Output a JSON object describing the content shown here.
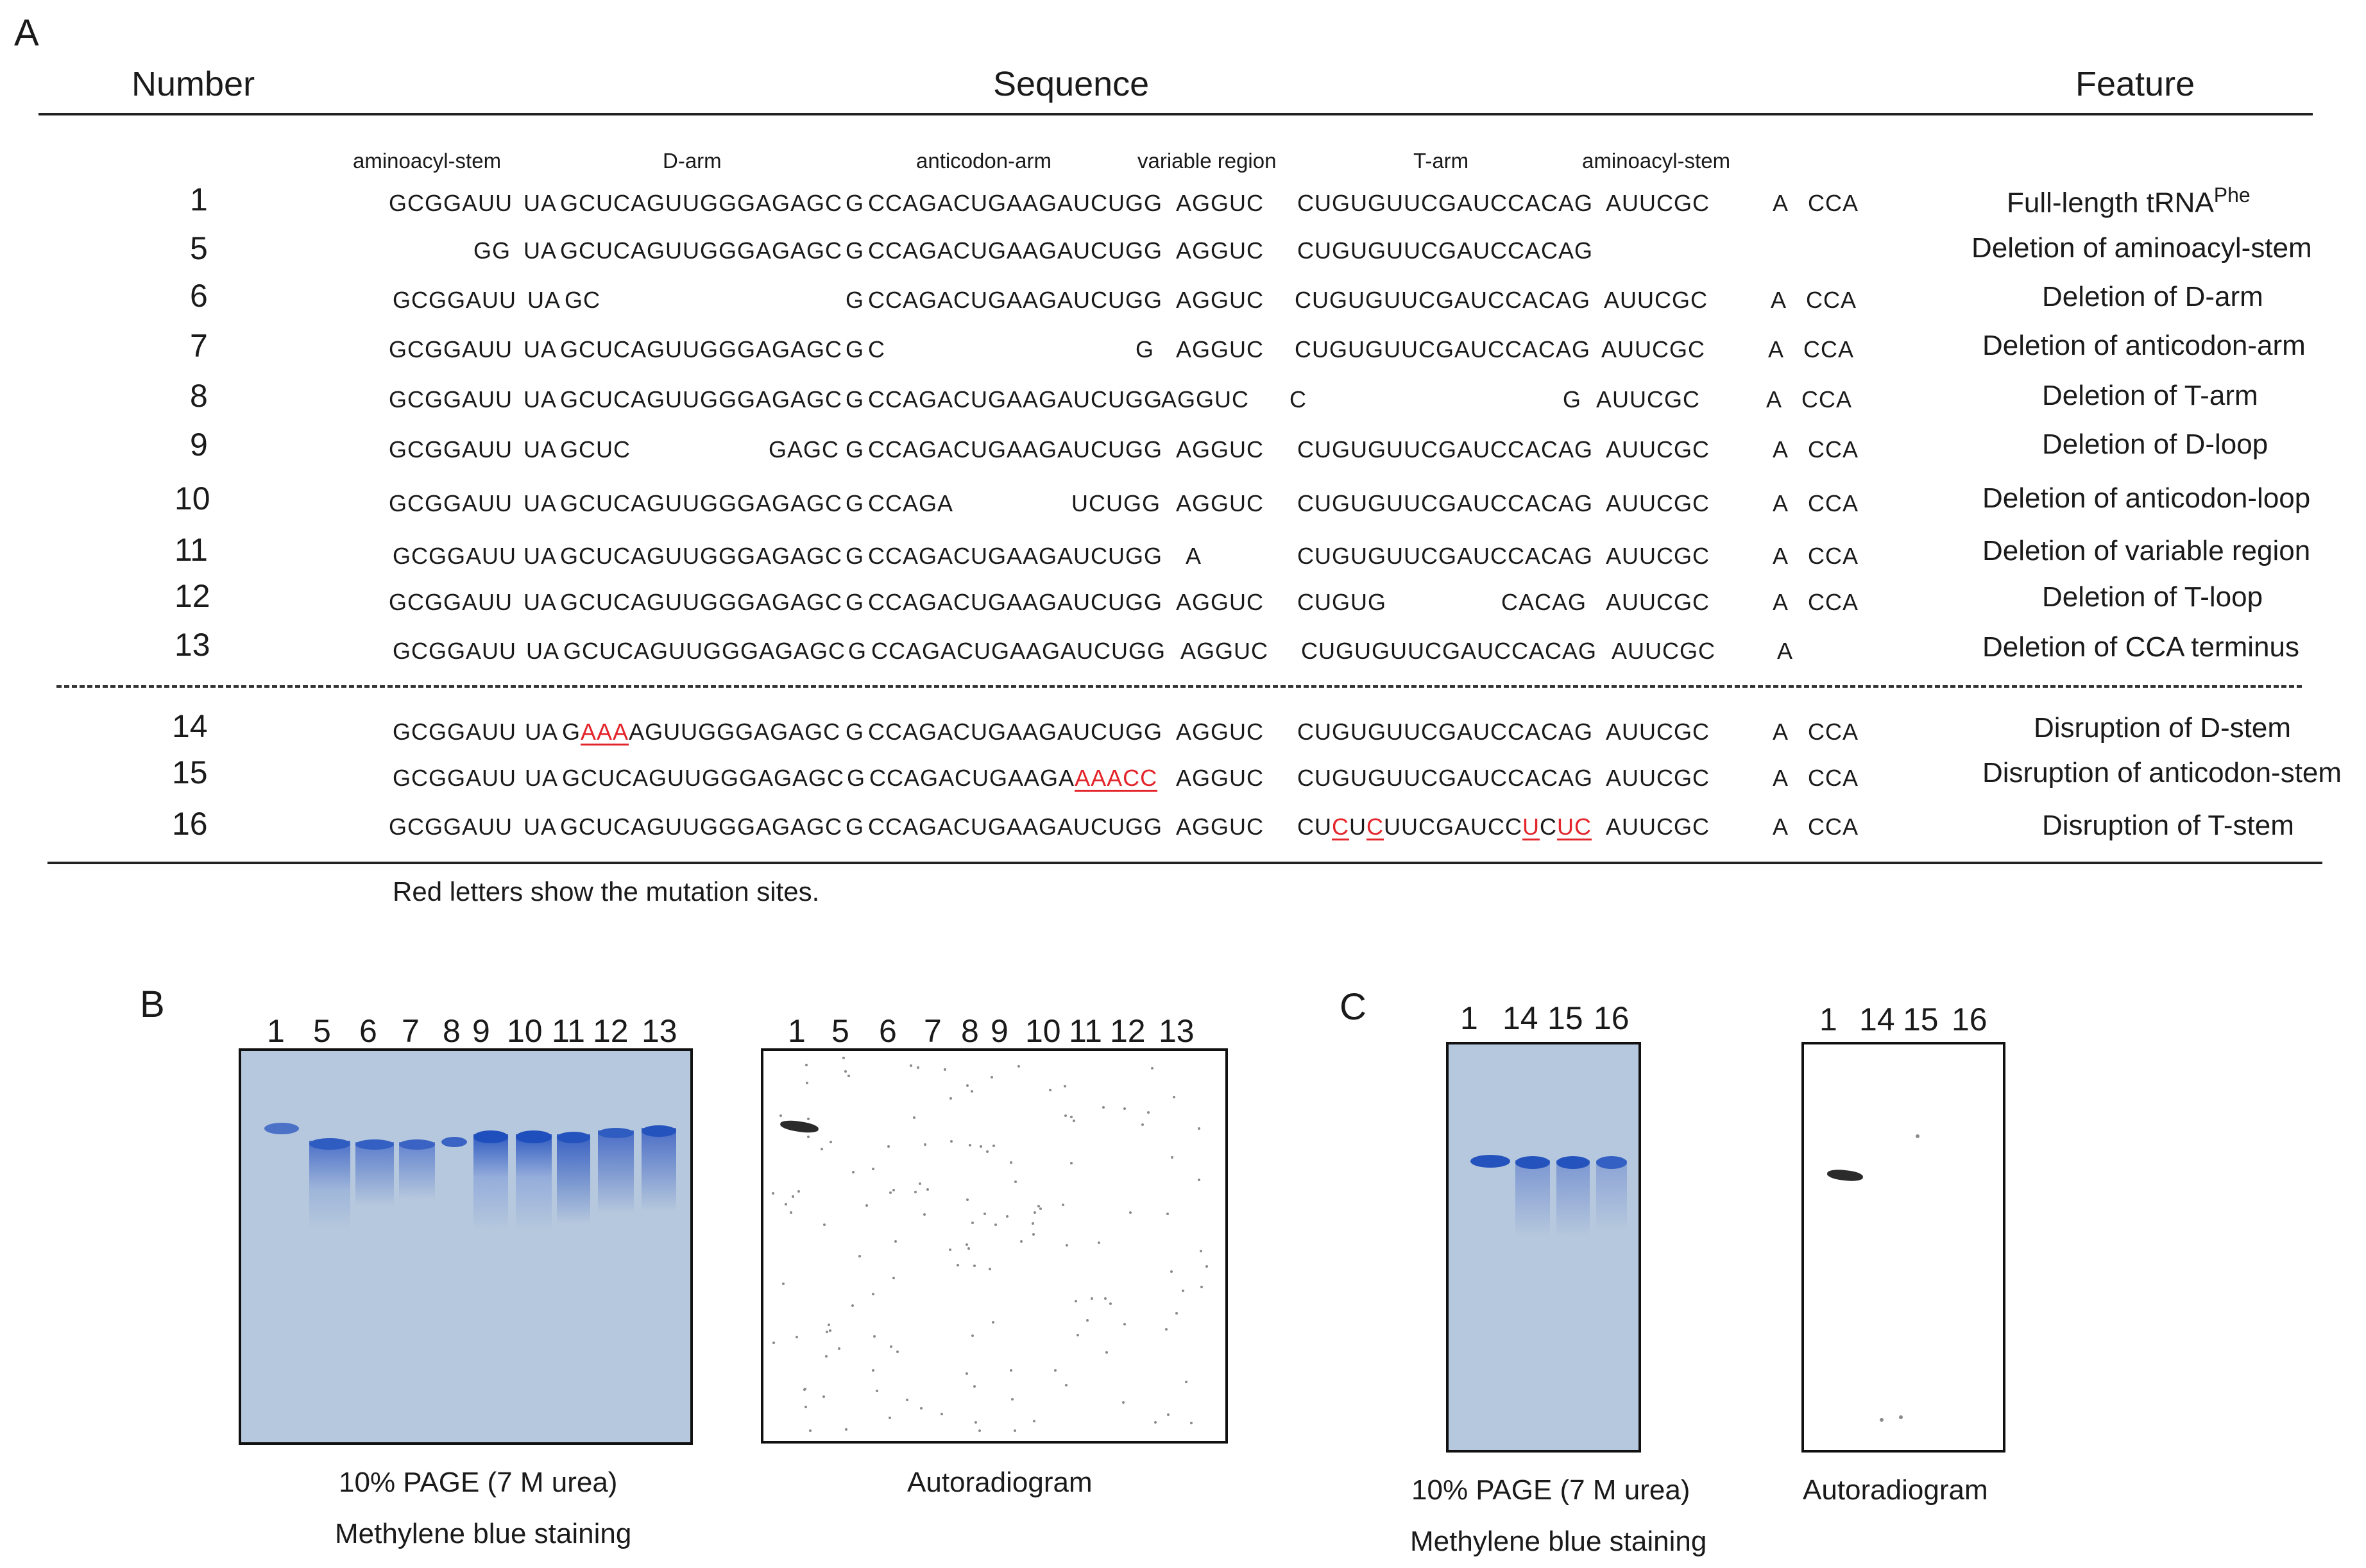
{
  "panel_a": {
    "letter": "A",
    "headers": {
      "number": "Number",
      "sequence": "Sequence",
      "feature": "Feature"
    },
    "segment_labels": [
      "aminoacyl-stem",
      "D-arm",
      "anticodon-arm",
      "variable region",
      "T-arm",
      "aminoacyl-stem"
    ],
    "rows": [
      {
        "num": "1",
        "segs": [
          "GCGGAUU",
          "UA",
          "GCUCAGUUGGGAGAGC",
          "G",
          "CCAGACUGAAGAUCUGG",
          "AGGUC",
          "CUGUGUUCGAUCCACAG",
          "AUUCGC",
          "A",
          "CCA"
        ],
        "feature": "Full-length tRNA",
        "feature_sup": "Phe"
      },
      {
        "num": "5",
        "segs": [
          "GG",
          "UA",
          "GCUCAGUUGGGAGAGC",
          "G",
          "CCAGACUGAAGAUCUGG",
          "AGGUC",
          "CUGUGUUCGAUCCACAG"
        ],
        "feature": "Deletion of aminoacyl-stem"
      },
      {
        "num": "6",
        "segs": [
          "GCGGAUU",
          "UA",
          "GC",
          "G",
          "CCAGACUGAAGAUCUGG",
          "AGGUC",
          "CUGUGUUCGAUCCACAG",
          "AUUCGC",
          "A",
          "CCA"
        ],
        "feature": "Deletion of D-arm"
      },
      {
        "num": "7",
        "segs": [
          "GCGGAUU",
          "UA",
          "GCUCAGUUGGGAGAGC",
          "G",
          "C",
          "G",
          "AGGUC",
          "CUGUGUUCGAUCCACAG",
          "AUUCGC",
          "A",
          "CCA"
        ],
        "feature": "Deletion of anticodon-arm"
      },
      {
        "num": "8",
        "segs": [
          "GCGGAUU",
          "UA",
          "GCUCAGUUGGGAGAGC",
          "G",
          "CCAGACUGAAGAUCUGG",
          "AGGUC",
          "C",
          "G",
          "AUUCGC",
          "A",
          "CCA"
        ],
        "feature": "Deletion of T-arm"
      },
      {
        "num": "9",
        "segs": [
          "GCGGAUU",
          "UA",
          "GCUC",
          "GAGC",
          "G",
          "CCAGACUGAAGAUCUGG",
          "AGGUC",
          "CUGUGUUCGAUCCACAG",
          "AUUCGC",
          "A",
          "CCA"
        ],
        "feature": "Deletion of D-loop"
      },
      {
        "num": "10",
        "segs": [
          "GCGGAUU",
          "UA",
          "GCUCAGUUGGGAGAGC",
          "G",
          "CCAGA",
          "UCUGG",
          "AGGUC",
          "CUGUGUUCGAUCCACAG",
          "AUUCGC",
          "A",
          "CCA"
        ],
        "feature": "Deletion of anticodon-loop"
      },
      {
        "num": "11",
        "segs": [
          "GCGGAUU",
          "UA",
          "GCUCAGUUGGGAGAGC",
          "G",
          "CCAGACUGAAGAUCUGG",
          "A",
          "CUGUGUUCGAUCCACAG",
          "AUUCGC",
          "A",
          "CCA"
        ],
        "feature": "Deletion of variable region"
      },
      {
        "num": "12",
        "segs": [
          "GCGGAUU",
          "UA",
          "GCUCAGUUGGGAGAGC",
          "G",
          "CCAGACUGAAGAUCUGG",
          "AGGUC",
          "CUGUG",
          "CACAG",
          "AUUCGC",
          "A",
          "CCA"
        ],
        "feature": "Deletion of T-loop"
      },
      {
        "num": "13",
        "segs": [
          "GCGGAUU",
          "UA",
          "GCUCAGUUGGGAGAGC",
          "G",
          "CCAGACUGAAGAUCUGG",
          "AGGUC",
          "CUGUGUUCGAUCCACAG",
          "AUUCGC",
          "A"
        ],
        "feature": "Deletion of CCA terminus"
      },
      {
        "num": "14",
        "segs": [
          "GCGGAUU",
          "UA",
          "G",
          "AAA",
          "AGUUGGGAGAGC",
          "G",
          "CCAGACUGAAGAUCUGG",
          "AGGUC",
          "CUGUGUUCGAUCCACAG",
          "AUUCGC",
          "A",
          "CCA"
        ],
        "feature": "Disruption of D-stem"
      },
      {
        "num": "15",
        "segs": [
          "GCGGAUU",
          "UA",
          "GCUCAGUUGGGAGAGC",
          "G",
          "CCAGACUGAAGA",
          "AAACC",
          "AGGUC",
          "CUGUGUUCGAUCCACAG",
          "AUUCGC",
          "A",
          "CCA"
        ],
        "feature": "Disruption of anticodon-stem"
      },
      {
        "num": "16",
        "segs": [
          "GCGGAUU",
          "UA",
          "GCUCAGUUGGGAGAGC",
          "G",
          "CCAGACUGAAGAUCUGG",
          "AGGUC",
          "CU",
          "C",
          "U",
          "C",
          "UUCGAUCC",
          "U",
          "C",
          "U",
          "C",
          "AUUCGC",
          "A",
          "CCA"
        ],
        "feature": "Disruption of T-stem"
      }
    ],
    "note": "Red letters show the mutation sites.",
    "mutation_color": "#e3242b"
  },
  "panel_b": {
    "letter": "B",
    "stain_lanes": [
      "1",
      "5",
      "6",
      "7",
      "8",
      "9",
      "10",
      "11",
      "12",
      "13"
    ],
    "autorad_lanes": [
      "1",
      "5",
      "6",
      "7",
      "8",
      "9",
      "10",
      "11",
      "12",
      "13"
    ],
    "stain_caption_1": "10% PAGE (7 M urea)",
    "stain_caption_2": "Methylene blue staining",
    "autorad_caption": "Autoradiogram"
  },
  "panel_c": {
    "letter": "C",
    "stain_lanes": [
      "1",
      "14",
      "15",
      "16"
    ],
    "autorad_lanes": [
      "1",
      "14",
      "15",
      "16"
    ],
    "stain_caption_1": "10% PAGE (7 M urea)",
    "stain_caption_2": "Methylene blue staining",
    "autorad_caption": "Autoradiogram"
  },
  "colors": {
    "gel_background": "#b6c8dd",
    "band": "#2e5cc0",
    "autorad_spot": "#2b2b2b"
  }
}
